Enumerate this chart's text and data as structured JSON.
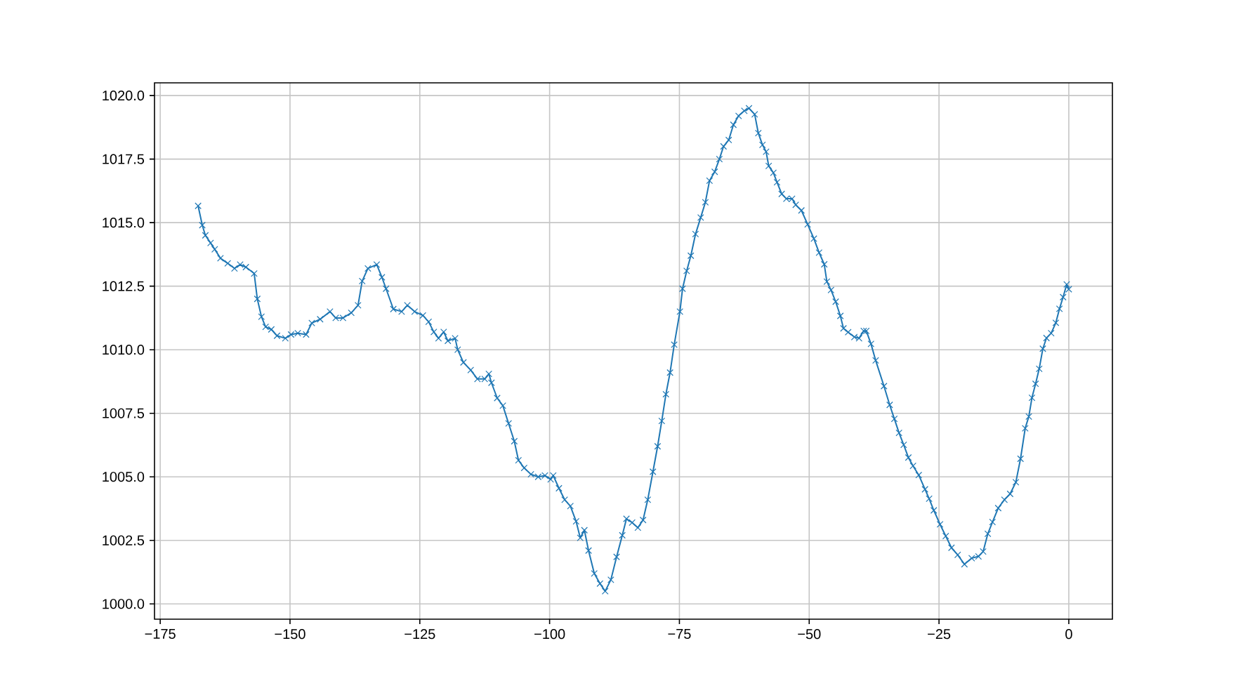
{
  "chart_data": {
    "type": "line",
    "color": "#1f77b4",
    "marker": "cross",
    "line_style": "solid",
    "grid": true,
    "x": [
      -167.7,
      -166.9,
      -166.3,
      -165.3,
      -164.5,
      -163.4,
      -162.0,
      -160.7,
      -159.6,
      -158.5,
      -156.9,
      -156.3,
      -155.5,
      -154.7,
      -153.6,
      -152.5,
      -150.9,
      -149.8,
      -148.5,
      -146.9,
      -145.8,
      -144.2,
      -142.3,
      -141.2,
      -139.8,
      -138.2,
      -136.9,
      -136.1,
      -135.0,
      -133.3,
      -132.3,
      -131.5,
      -130.1,
      -128.5,
      -127.4,
      -126.0,
      -124.4,
      -123.3,
      -122.3,
      -121.4,
      -120.4,
      -119.6,
      -118.2,
      -117.7,
      -116.6,
      -115.2,
      -113.9,
      -112.5,
      -111.7,
      -111.2,
      -110.1,
      -109.0,
      -107.9,
      -106.8,
      -106.0,
      -104.9,
      -103.6,
      -102.2,
      -100.9,
      -99.8,
      -99.3,
      -98.2,
      -97.1,
      -96.0,
      -94.9,
      -94.1,
      -93.3,
      -92.5,
      -91.4,
      -90.3,
      -89.3,
      -88.2,
      -87.1,
      -86.0,
      -85.2,
      -84.1,
      -83.0,
      -82.0,
      -81.1,
      -80.1,
      -79.2,
      -78.4,
      -77.6,
      -76.8,
      -76.0,
      -74.9,
      -74.4,
      -73.6,
      -72.8,
      -71.9,
      -70.9,
      -70.0,
      -69.2,
      -68.2,
      -67.3,
      -66.5,
      -65.5,
      -64.6,
      -63.6,
      -62.5,
      -61.6,
      -60.5,
      -59.8,
      -59.0,
      -58.3,
      -57.8,
      -56.9,
      -56.2,
      -55.3,
      -54.4,
      -53.3,
      -52.6,
      -51.5,
      -50.3,
      -49.1,
      -48.1,
      -47.1,
      -46.6,
      -45.8,
      -44.9,
      -44.0,
      -43.4,
      -42.5,
      -41.3,
      -40.4,
      -39.5,
      -39.0,
      -38.1,
      -37.2,
      -35.6,
      -34.5,
      -33.6,
      -32.7,
      -31.8,
      -30.9,
      -30.0,
      -28.9,
      -27.7,
      -26.9,
      -26.0,
      -24.8,
      -23.7,
      -22.6,
      -21.4,
      -20.1,
      -18.7,
      -17.4,
      -16.5,
      -15.6,
      -14.7,
      -13.6,
      -12.4,
      -11.3,
      -10.2,
      -9.3,
      -8.4,
      -7.7,
      -7.1,
      -6.4,
      -5.7,
      -5.0,
      -4.3,
      -3.4,
      -2.5,
      -1.8,
      -1.1,
      -0.4,
      0.0
    ],
    "values": [
      1015.66,
      1014.9,
      1014.5,
      1014.2,
      1013.95,
      1013.6,
      1013.4,
      1013.2,
      1013.35,
      1013.25,
      1013.0,
      1012.0,
      1011.3,
      1010.9,
      1010.8,
      1010.55,
      1010.45,
      1010.6,
      1010.65,
      1010.6,
      1011.05,
      1011.2,
      1011.5,
      1011.25,
      1011.25,
      1011.45,
      1011.75,
      1012.7,
      1013.2,
      1013.35,
      1012.85,
      1012.4,
      1011.6,
      1011.5,
      1011.75,
      1011.5,
      1011.35,
      1011.1,
      1010.7,
      1010.45,
      1010.7,
      1010.35,
      1010.45,
      1010.0,
      1009.5,
      1009.2,
      1008.85,
      1008.85,
      1009.05,
      1008.7,
      1008.1,
      1007.8,
      1007.1,
      1006.4,
      1005.65,
      1005.35,
      1005.1,
      1005.0,
      1005.05,
      1004.9,
      1005.05,
      1004.55,
      1004.1,
      1003.85,
      1003.25,
      1002.6,
      1002.9,
      1002.1,
      1001.2,
      1000.8,
      1000.5,
      1000.95,
      1001.85,
      1002.7,
      1003.35,
      1003.2,
      1003.0,
      1003.3,
      1004.1,
      1005.2,
      1006.2,
      1007.2,
      1008.25,
      1009.1,
      1010.2,
      1011.5,
      1012.4,
      1013.1,
      1013.7,
      1014.55,
      1015.2,
      1015.8,
      1016.65,
      1017.0,
      1017.5,
      1018.0,
      1018.25,
      1018.85,
      1019.2,
      1019.4,
      1019.5,
      1019.26,
      1018.52,
      1018.06,
      1017.79,
      1017.23,
      1016.96,
      1016.59,
      1016.13,
      1015.94,
      1015.94,
      1015.7,
      1015.48,
      1014.93,
      1014.37,
      1013.82,
      1013.36,
      1012.68,
      1012.35,
      1011.89,
      1011.33,
      1010.84,
      1010.69,
      1010.5,
      1010.45,
      1010.74,
      1010.74,
      1010.23,
      1009.58,
      1008.57,
      1007.83,
      1007.28,
      1006.73,
      1006.26,
      1005.76,
      1005.43,
      1005.07,
      1004.51,
      1004.14,
      1003.68,
      1003.13,
      1002.67,
      1002.21,
      1001.93,
      1001.56,
      1001.8,
      1001.87,
      1002.06,
      1002.76,
      1003.22,
      1003.77,
      1004.1,
      1004.33,
      1004.79,
      1005.71,
      1006.91,
      1007.37,
      1008.11,
      1008.66,
      1009.25,
      1010.04,
      1010.46,
      1010.65,
      1011.06,
      1011.61,
      1012.07,
      1012.57,
      1012.38
    ],
    "xlim": [
      -176.1,
      8.4
    ],
    "ylim": [
      999.4,
      1020.5
    ],
    "xticks": [
      {
        "value": -175,
        "label": "−175"
      },
      {
        "value": -150,
        "label": "−150"
      },
      {
        "value": -125,
        "label": "−125"
      },
      {
        "value": -100,
        "label": "−100"
      },
      {
        "value": -75,
        "label": "−75"
      },
      {
        "value": -50,
        "label": "−50"
      },
      {
        "value": -25,
        "label": "−25"
      },
      0
    ],
    "yticks": [
      {
        "value": 1000,
        "label": "1000.0"
      },
      {
        "value": 1002.5,
        "label": "1002.5"
      },
      {
        "value": 1005,
        "label": "1005.0"
      },
      {
        "value": 1007.5,
        "label": "1007.5"
      },
      {
        "value": 1010,
        "label": "1010.0"
      },
      {
        "value": 1012.5,
        "label": "1012.5"
      },
      {
        "value": 1015,
        "label": "1015.0"
      },
      {
        "value": 1017.5,
        "label": "1017.5"
      },
      {
        "value": 1020,
        "label": "1020.0"
      }
    ]
  }
}
